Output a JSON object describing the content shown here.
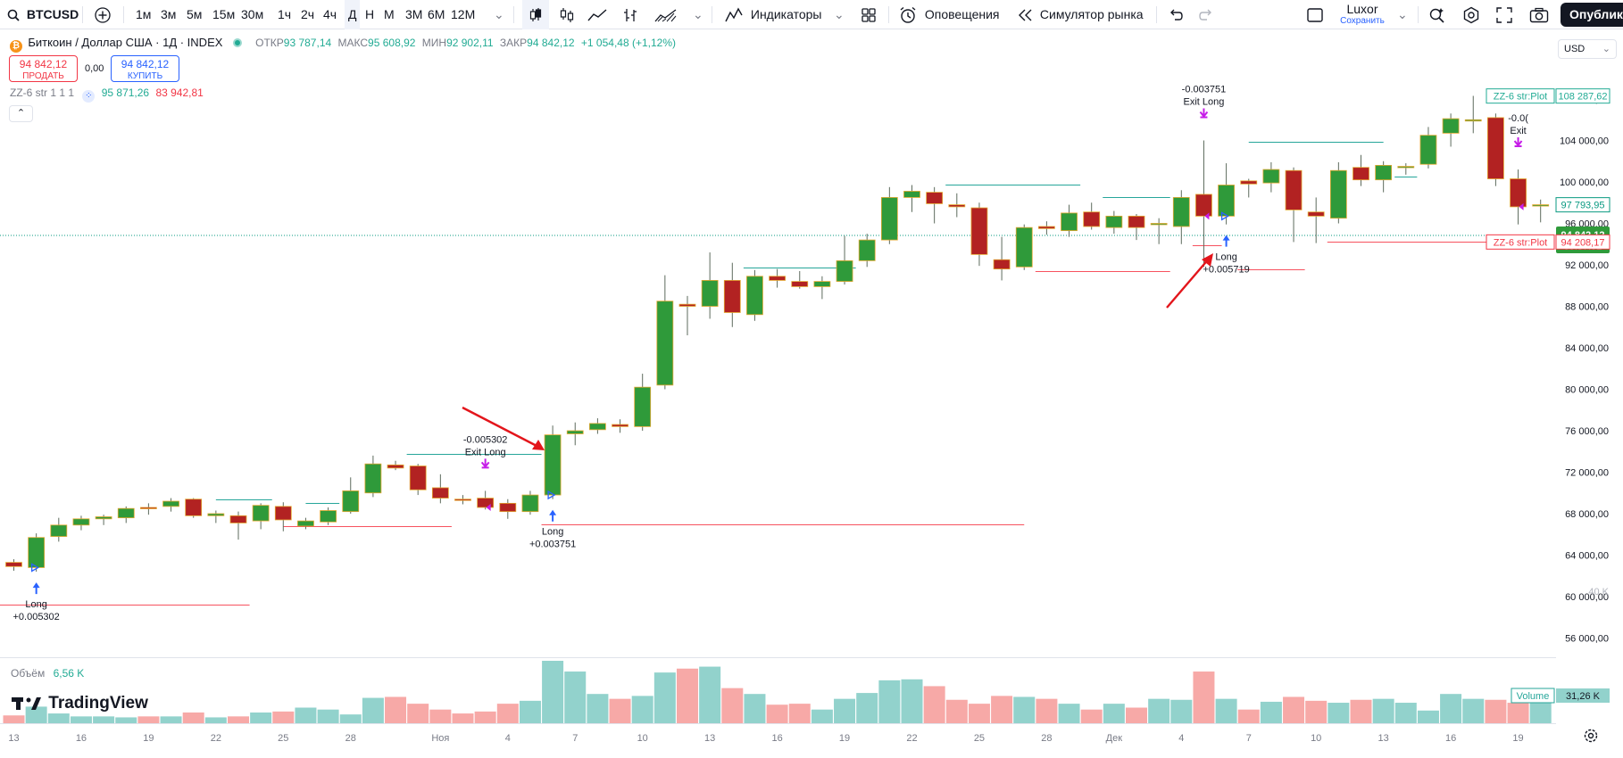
{
  "toolbar": {
    "symbol": "BTCUSD",
    "intervals": [
      "1м",
      "3м",
      "5м",
      "15м",
      "30м",
      "1ч",
      "2ч",
      "4ч",
      "Д",
      "Н",
      "М",
      "3М",
      "6М",
      "12М"
    ],
    "active_interval": "Д",
    "indicators_label": "Индикаторы",
    "alerts_label": "Оповещения",
    "replay_label": "Симулятор рынка",
    "layout_name": "Luxor",
    "layout_save": "Сохранить",
    "publish_label": "Опублико"
  },
  "legend": {
    "title": "Биткоин / Доллар США · 1Д · INDEX",
    "open_label": "ОТКР",
    "open": "93 787,14",
    "high_label": "МАКС",
    "high": "95 608,92",
    "low_label": "МИН",
    "low": "92 902,11",
    "close_label": "ЗАКР",
    "close": "94 842,12",
    "change": "+1 054,48 (+1,12%)",
    "sell_price": "94 842,12",
    "sell_label": "ПРОДАТЬ",
    "spread": "0,00",
    "buy_price": "94 842,12",
    "buy_label": "КУПИТЬ",
    "indicator_name": "ZZ-6 str 1 1 1",
    "indicator_val1": "95 871,26",
    "indicator_val2": "83 942,81",
    "currency": "USD",
    "volume_label": "Объём",
    "volume_value": "6,56 K",
    "brand": "TradingView"
  },
  "chart_data": {
    "type": "candlestick",
    "currency": "USD",
    "y_ticks": [
      "108 000,00",
      "104 000,00",
      "100 000,00",
      "96 000,00",
      "92 000,00",
      "88 000,00",
      "84 000,00",
      "80 000,00",
      "76 000,00",
      "72 000,00",
      "68 000,00",
      "64 000,00",
      "60 000,00",
      "56 000,00"
    ],
    "y_tick_values": [
      108000,
      104000,
      100000,
      96000,
      92000,
      88000,
      84000,
      80000,
      76000,
      72000,
      68000,
      64000,
      60000,
      56000
    ],
    "x_ticks": [
      {
        "label": "13",
        "i": 0
      },
      {
        "label": "16",
        "i": 3
      },
      {
        "label": "19",
        "i": 6
      },
      {
        "label": "22",
        "i": 9
      },
      {
        "label": "25",
        "i": 12
      },
      {
        "label": "28",
        "i": 15
      },
      {
        "label": "Ноя",
        "i": 19
      },
      {
        "label": "4",
        "i": 22
      },
      {
        "label": "7",
        "i": 25
      },
      {
        "label": "10",
        "i": 28
      },
      {
        "label": "13",
        "i": 31
      },
      {
        "label": "16",
        "i": 34
      },
      {
        "label": "19",
        "i": 37
      },
      {
        "label": "22",
        "i": 40
      },
      {
        "label": "25",
        "i": 43
      },
      {
        "label": "28",
        "i": 46
      },
      {
        "label": "Дек",
        "i": 49
      },
      {
        "label": "4",
        "i": 52
      },
      {
        "label": "7",
        "i": 55
      },
      {
        "label": "10",
        "i": 58
      },
      {
        "label": "13",
        "i": 61
      },
      {
        "label": "16",
        "i": 64
      },
      {
        "label": "19",
        "i": 67
      }
    ],
    "candles": [
      [
        63300,
        63600,
        62500,
        62900
      ],
      [
        62800,
        66100,
        62400,
        65700
      ],
      [
        65800,
        67600,
        65300,
        66900
      ],
      [
        66900,
        67800,
        66400,
        67500
      ],
      [
        67500,
        67900,
        66900,
        67700
      ],
      [
        67600,
        68700,
        67100,
        68500
      ],
      [
        68600,
        69000,
        67900,
        68500
      ],
      [
        68700,
        69500,
        68200,
        69200
      ],
      [
        69400,
        69500,
        67600,
        67800
      ],
      [
        67800,
        68300,
        67100,
        68000
      ],
      [
        67800,
        68200,
        65500,
        67100
      ],
      [
        67300,
        69000,
        66500,
        68800
      ],
      [
        68700,
        69100,
        66300,
        67400
      ],
      [
        66800,
        67600,
        66500,
        67300
      ],
      [
        67200,
        68600,
        66900,
        68300
      ],
      [
        68200,
        71500,
        68000,
        70200
      ],
      [
        70000,
        73600,
        69600,
        72800
      ],
      [
        72700,
        73100,
        72200,
        72400
      ],
      [
        72600,
        72800,
        69800,
        70300
      ],
      [
        70500,
        71800,
        69000,
        69500
      ],
      [
        69400,
        69800,
        68900,
        69300
      ],
      [
        69500,
        70200,
        68400,
        68600
      ],
      [
        69000,
        69400,
        67500,
        68200
      ],
      [
        68200,
        70200,
        67900,
        69800
      ],
      [
        69800,
        76500,
        69400,
        75600
      ],
      [
        75700,
        76800,
        74600,
        76000
      ],
      [
        76100,
        77200,
        75700,
        76700
      ],
      [
        76600,
        77100,
        75800,
        76400
      ],
      [
        76400,
        81500,
        76000,
        80200
      ],
      [
        80400,
        91000,
        80000,
        88500
      ],
      [
        88200,
        89000,
        85200,
        88000
      ],
      [
        88000,
        93200,
        86800,
        90500
      ],
      [
        90500,
        92200,
        86000,
        87400
      ],
      [
        87200,
        91500,
        86600,
        90900
      ],
      [
        90900,
        91600,
        89800,
        90500
      ],
      [
        90400,
        91400,
        89700,
        89900
      ],
      [
        89900,
        90900,
        88700,
        90400
      ],
      [
        90400,
        94800,
        90100,
        92400
      ],
      [
        92400,
        95000,
        91800,
        94400
      ],
      [
        94400,
        99500,
        94000,
        98500
      ],
      [
        98500,
        99700,
        97100,
        99100
      ],
      [
        99000,
        99500,
        96000,
        97900
      ],
      [
        97800,
        98900,
        96600,
        97600
      ],
      [
        97500,
        98000,
        91900,
        93000
      ],
      [
        92500,
        94700,
        90500,
        91600
      ],
      [
        91800,
        95900,
        91500,
        95600
      ],
      [
        95700,
        96200,
        94900,
        95500
      ],
      [
        95300,
        97800,
        94700,
        97000
      ],
      [
        97100,
        98000,
        95400,
        95700
      ],
      [
        95600,
        97200,
        95000,
        96700
      ],
      [
        96700,
        96900,
        94400,
        95600
      ],
      [
        96000,
        96500,
        94000,
        96000
      ],
      [
        95700,
        99200,
        94000,
        98500
      ],
      [
        98800,
        104000,
        91800,
        96700
      ],
      [
        96700,
        101800,
        95900,
        99700
      ],
      [
        100100,
        100300,
        98500,
        99800
      ],
      [
        99900,
        101900,
        99000,
        101200
      ],
      [
        101100,
        101400,
        94200,
        97300
      ],
      [
        97100,
        98500,
        94100,
        96700
      ],
      [
        96500,
        101900,
        96000,
        101100
      ],
      [
        101400,
        102600,
        99600,
        100200
      ],
      [
        100200,
        102000,
        99000,
        101600
      ],
      [
        101500,
        101800,
        100700,
        101500
      ],
      [
        101700,
        105300,
        101300,
        104500
      ],
      [
        104700,
        106600,
        103400,
        106100
      ],
      [
        106000,
        108300,
        104700,
        106000
      ],
      [
        106200,
        106600,
        99600,
        100300
      ],
      [
        100300,
        101200,
        95900,
        97600
      ],
      [
        97800,
        98300,
        96100,
        97800
      ]
    ],
    "zigzag_levels": [
      {
        "from": -1.5,
        "to": 10.5,
        "price": 59200,
        "color": "#f7525f"
      },
      {
        "from": 9,
        "to": 11.5,
        "price": 69400,
        "color": "#26a69a"
      },
      {
        "from": 12,
        "to": 19.5,
        "price": 66800,
        "color": "#f7525f"
      },
      {
        "from": 13,
        "to": 14.5,
        "price": 69000,
        "color": "#26a69a"
      },
      {
        "from": 17.5,
        "to": 23.5,
        "price": 73800,
        "color": "#26a69a"
      },
      {
        "from": 23.5,
        "to": 45,
        "price": 67000,
        "color": "#f7525f"
      },
      {
        "from": 32.5,
        "to": 37.5,
        "price": 91700,
        "color": "#26a69a"
      },
      {
        "from": 41.5,
        "to": 47.5,
        "price": 99700,
        "color": "#26a69a"
      },
      {
        "from": 45.5,
        "to": 51.5,
        "price": 91400,
        "color": "#f7525f"
      },
      {
        "from": 48.5,
        "to": 51.5,
        "price": 98500,
        "color": "#26a69a"
      },
      {
        "from": 52.5,
        "to": 53.8,
        "price": 93900,
        "color": "#f7525f"
      },
      {
        "from": 54.5,
        "to": 57.5,
        "price": 91600,
        "color": "#f7525f"
      },
      {
        "from": 55,
        "to": 61,
        "price": 103900,
        "color": "#26a69a"
      },
      {
        "from": 58.5,
        "to": 68.5,
        "price": 94200,
        "color": "#f7525f"
      },
      {
        "from": 61.5,
        "to": 62.5,
        "price": 100500,
        "color": "#26a69a"
      }
    ],
    "signals": [
      {
        "type": "long",
        "i": 1,
        "label": "Long",
        "value": "+0.005302"
      },
      {
        "type": "exit",
        "i": 21,
        "label": "Exit Long",
        "value": "-0.005302"
      },
      {
        "type": "long",
        "i": 24,
        "label": "Long",
        "value": "+0.003751"
      },
      {
        "type": "exit",
        "i": 53,
        "label": "Exit Long",
        "value": "-0.003751"
      },
      {
        "type": "long",
        "i": 54,
        "label": "Long",
        "value": "+0.005719"
      },
      {
        "type": "exit",
        "i": 67,
        "label": "Exit",
        "value": "-0.0("
      }
    ],
    "volume": [
      8,
      17,
      10,
      7,
      7,
      6,
      7,
      7,
      11,
      6,
      7,
      11,
      12,
      16,
      14,
      9,
      26,
      27,
      20,
      14,
      10,
      12,
      20,
      23,
      64,
      53,
      30,
      25,
      28,
      52,
      56,
      58,
      36,
      30,
      19,
      20,
      14,
      25,
      31,
      44,
      45,
      38,
      24,
      20,
      28,
      27,
      25,
      20,
      14,
      20,
      16,
      25,
      24,
      53,
      25,
      14,
      22,
      27,
      23,
      21,
      24,
      25,
      21,
      13,
      30,
      25,
      24,
      21,
      21
    ],
    "volume_max": 64,
    "price_labels": [
      {
        "name": "ZZ-6 str:Plot",
        "value": "108 287,62",
        "price": 108287,
        "kind": "zz-high"
      },
      {
        "name": "",
        "value": "97 793,95",
        "price": 97794,
        "kind": "last-close"
      },
      {
        "name": "",
        "value": "94 842,12",
        "time": "09:37:52",
        "price": 94842,
        "kind": "current"
      },
      {
        "name": "ZZ-6 str:Plot",
        "value": "94 208,17",
        "price": 94208,
        "kind": "zz-low"
      }
    ],
    "volume_label": {
      "name": "Volume",
      "value": "31,26 K"
    },
    "volume_tick": "40 K"
  }
}
